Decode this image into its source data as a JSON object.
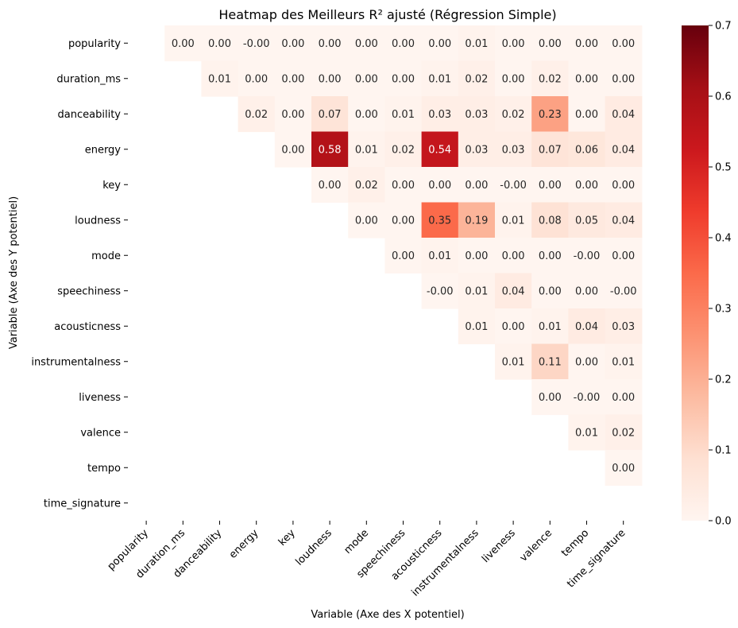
{
  "chart_data": {
    "type": "heatmap",
    "title": "Heatmap des Meilleurs R² ajusté (Régression Simple)",
    "xlabel": "Variable (Axe des X potentiel)",
    "ylabel": "Variable (Axe des Y potentiel)",
    "variables": [
      "popularity",
      "duration_ms",
      "danceability",
      "energy",
      "key",
      "loudness",
      "mode",
      "speechiness",
      "acousticness",
      "instrumentalness",
      "liveness",
      "valence",
      "tempo",
      "time_signature"
    ],
    "cells": [
      {
        "row": 0,
        "col": 1,
        "value": 0.0,
        "label": "0.00"
      },
      {
        "row": 0,
        "col": 2,
        "value": 0.0,
        "label": "0.00"
      },
      {
        "row": 0,
        "col": 3,
        "value": 0.0,
        "label": "-0.00"
      },
      {
        "row": 0,
        "col": 4,
        "value": 0.0,
        "label": "0.00"
      },
      {
        "row": 0,
        "col": 5,
        "value": 0.0,
        "label": "0.00"
      },
      {
        "row": 0,
        "col": 6,
        "value": 0.0,
        "label": "0.00"
      },
      {
        "row": 0,
        "col": 7,
        "value": 0.0,
        "label": "0.00"
      },
      {
        "row": 0,
        "col": 8,
        "value": 0.0,
        "label": "0.00"
      },
      {
        "row": 0,
        "col": 9,
        "value": 0.01,
        "label": "0.01"
      },
      {
        "row": 0,
        "col": 10,
        "value": 0.0,
        "label": "0.00"
      },
      {
        "row": 0,
        "col": 11,
        "value": 0.0,
        "label": "0.00"
      },
      {
        "row": 0,
        "col": 12,
        "value": 0.0,
        "label": "0.00"
      },
      {
        "row": 0,
        "col": 13,
        "value": 0.0,
        "label": "0.00"
      },
      {
        "row": 1,
        "col": 2,
        "value": 0.01,
        "label": "0.01"
      },
      {
        "row": 1,
        "col": 3,
        "value": 0.0,
        "label": "0.00"
      },
      {
        "row": 1,
        "col": 4,
        "value": 0.0,
        "label": "0.00"
      },
      {
        "row": 1,
        "col": 5,
        "value": 0.0,
        "label": "0.00"
      },
      {
        "row": 1,
        "col": 6,
        "value": 0.0,
        "label": "0.00"
      },
      {
        "row": 1,
        "col": 7,
        "value": 0.0,
        "label": "0.00"
      },
      {
        "row": 1,
        "col": 8,
        "value": 0.01,
        "label": "0.01"
      },
      {
        "row": 1,
        "col": 9,
        "value": 0.02,
        "label": "0.02"
      },
      {
        "row": 1,
        "col": 10,
        "value": 0.0,
        "label": "0.00"
      },
      {
        "row": 1,
        "col": 11,
        "value": 0.02,
        "label": "0.02"
      },
      {
        "row": 1,
        "col": 12,
        "value": 0.0,
        "label": "0.00"
      },
      {
        "row": 1,
        "col": 13,
        "value": 0.0,
        "label": "0.00"
      },
      {
        "row": 2,
        "col": 3,
        "value": 0.02,
        "label": "0.02"
      },
      {
        "row": 2,
        "col": 4,
        "value": 0.0,
        "label": "0.00"
      },
      {
        "row": 2,
        "col": 5,
        "value": 0.07,
        "label": "0.07"
      },
      {
        "row": 2,
        "col": 6,
        "value": 0.0,
        "label": "0.00"
      },
      {
        "row": 2,
        "col": 7,
        "value": 0.01,
        "label": "0.01"
      },
      {
        "row": 2,
        "col": 8,
        "value": 0.03,
        "label": "0.03"
      },
      {
        "row": 2,
        "col": 9,
        "value": 0.03,
        "label": "0.03"
      },
      {
        "row": 2,
        "col": 10,
        "value": 0.02,
        "label": "0.02"
      },
      {
        "row": 2,
        "col": 11,
        "value": 0.23,
        "label": "0.23"
      },
      {
        "row": 2,
        "col": 12,
        "value": 0.0,
        "label": "0.00"
      },
      {
        "row": 2,
        "col": 13,
        "value": 0.04,
        "label": "0.04"
      },
      {
        "row": 3,
        "col": 4,
        "value": 0.0,
        "label": "0.00"
      },
      {
        "row": 3,
        "col": 5,
        "value": 0.58,
        "label": "0.58"
      },
      {
        "row": 3,
        "col": 6,
        "value": 0.01,
        "label": "0.01"
      },
      {
        "row": 3,
        "col": 7,
        "value": 0.02,
        "label": "0.02"
      },
      {
        "row": 3,
        "col": 8,
        "value": 0.54,
        "label": "0.54"
      },
      {
        "row": 3,
        "col": 9,
        "value": 0.03,
        "label": "0.03"
      },
      {
        "row": 3,
        "col": 10,
        "value": 0.03,
        "label": "0.03"
      },
      {
        "row": 3,
        "col": 11,
        "value": 0.07,
        "label": "0.07"
      },
      {
        "row": 3,
        "col": 12,
        "value": 0.06,
        "label": "0.06"
      },
      {
        "row": 3,
        "col": 13,
        "value": 0.04,
        "label": "0.04"
      },
      {
        "row": 4,
        "col": 5,
        "value": 0.0,
        "label": "0.00"
      },
      {
        "row": 4,
        "col": 6,
        "value": 0.02,
        "label": "0.02"
      },
      {
        "row": 4,
        "col": 7,
        "value": 0.0,
        "label": "0.00"
      },
      {
        "row": 4,
        "col": 8,
        "value": 0.0,
        "label": "0.00"
      },
      {
        "row": 4,
        "col": 9,
        "value": 0.0,
        "label": "0.00"
      },
      {
        "row": 4,
        "col": 10,
        "value": 0.0,
        "label": "-0.00"
      },
      {
        "row": 4,
        "col": 11,
        "value": 0.0,
        "label": "0.00"
      },
      {
        "row": 4,
        "col": 12,
        "value": 0.0,
        "label": "0.00"
      },
      {
        "row": 4,
        "col": 13,
        "value": 0.0,
        "label": "0.00"
      },
      {
        "row": 5,
        "col": 6,
        "value": 0.0,
        "label": "0.00"
      },
      {
        "row": 5,
        "col": 7,
        "value": 0.0,
        "label": "0.00"
      },
      {
        "row": 5,
        "col": 8,
        "value": 0.35,
        "label": "0.35"
      },
      {
        "row": 5,
        "col": 9,
        "value": 0.19,
        "label": "0.19"
      },
      {
        "row": 5,
        "col": 10,
        "value": 0.01,
        "label": "0.01"
      },
      {
        "row": 5,
        "col": 11,
        "value": 0.08,
        "label": "0.08"
      },
      {
        "row": 5,
        "col": 12,
        "value": 0.05,
        "label": "0.05"
      },
      {
        "row": 5,
        "col": 13,
        "value": 0.04,
        "label": "0.04"
      },
      {
        "row": 6,
        "col": 7,
        "value": 0.0,
        "label": "0.00"
      },
      {
        "row": 6,
        "col": 8,
        "value": 0.01,
        "label": "0.01"
      },
      {
        "row": 6,
        "col": 9,
        "value": 0.0,
        "label": "0.00"
      },
      {
        "row": 6,
        "col": 10,
        "value": 0.0,
        "label": "0.00"
      },
      {
        "row": 6,
        "col": 11,
        "value": 0.0,
        "label": "0.00"
      },
      {
        "row": 6,
        "col": 12,
        "value": 0.0,
        "label": "-0.00"
      },
      {
        "row": 6,
        "col": 13,
        "value": 0.0,
        "label": "0.00"
      },
      {
        "row": 7,
        "col": 8,
        "value": 0.0,
        "label": "-0.00"
      },
      {
        "row": 7,
        "col": 9,
        "value": 0.01,
        "label": "0.01"
      },
      {
        "row": 7,
        "col": 10,
        "value": 0.04,
        "label": "0.04"
      },
      {
        "row": 7,
        "col": 11,
        "value": 0.0,
        "label": "0.00"
      },
      {
        "row": 7,
        "col": 12,
        "value": 0.0,
        "label": "0.00"
      },
      {
        "row": 7,
        "col": 13,
        "value": 0.0,
        "label": "-0.00"
      },
      {
        "row": 8,
        "col": 9,
        "value": 0.01,
        "label": "0.01"
      },
      {
        "row": 8,
        "col": 10,
        "value": 0.0,
        "label": "0.00"
      },
      {
        "row": 8,
        "col": 11,
        "value": 0.01,
        "label": "0.01"
      },
      {
        "row": 8,
        "col": 12,
        "value": 0.04,
        "label": "0.04"
      },
      {
        "row": 8,
        "col": 13,
        "value": 0.03,
        "label": "0.03"
      },
      {
        "row": 9,
        "col": 10,
        "value": 0.01,
        "label": "0.01"
      },
      {
        "row": 9,
        "col": 11,
        "value": 0.11,
        "label": "0.11"
      },
      {
        "row": 9,
        "col": 12,
        "value": 0.0,
        "label": "0.00"
      },
      {
        "row": 9,
        "col": 13,
        "value": 0.01,
        "label": "0.01"
      },
      {
        "row": 10,
        "col": 11,
        "value": 0.0,
        "label": "0.00"
      },
      {
        "row": 10,
        "col": 12,
        "value": 0.0,
        "label": "-0.00"
      },
      {
        "row": 10,
        "col": 13,
        "value": 0.0,
        "label": "0.00"
      },
      {
        "row": 11,
        "col": 12,
        "value": 0.01,
        "label": "0.01"
      },
      {
        "row": 11,
        "col": 13,
        "value": 0.02,
        "label": "0.02"
      },
      {
        "row": 12,
        "col": 13,
        "value": 0.0,
        "label": "0.00"
      }
    ],
    "colorbar": {
      "min": 0.0,
      "max": 0.7,
      "ticks": [
        "0.0",
        "0.1",
        "0.2",
        "0.3",
        "0.4",
        "0.5",
        "0.6",
        "0.7"
      ],
      "colormap": [
        "#fff5f0",
        "#fee0d2",
        "#fcbba1",
        "#fc9272",
        "#fb6a4a",
        "#ef3b2c",
        "#cb181d",
        "#a50f15",
        "#67000d"
      ]
    }
  }
}
